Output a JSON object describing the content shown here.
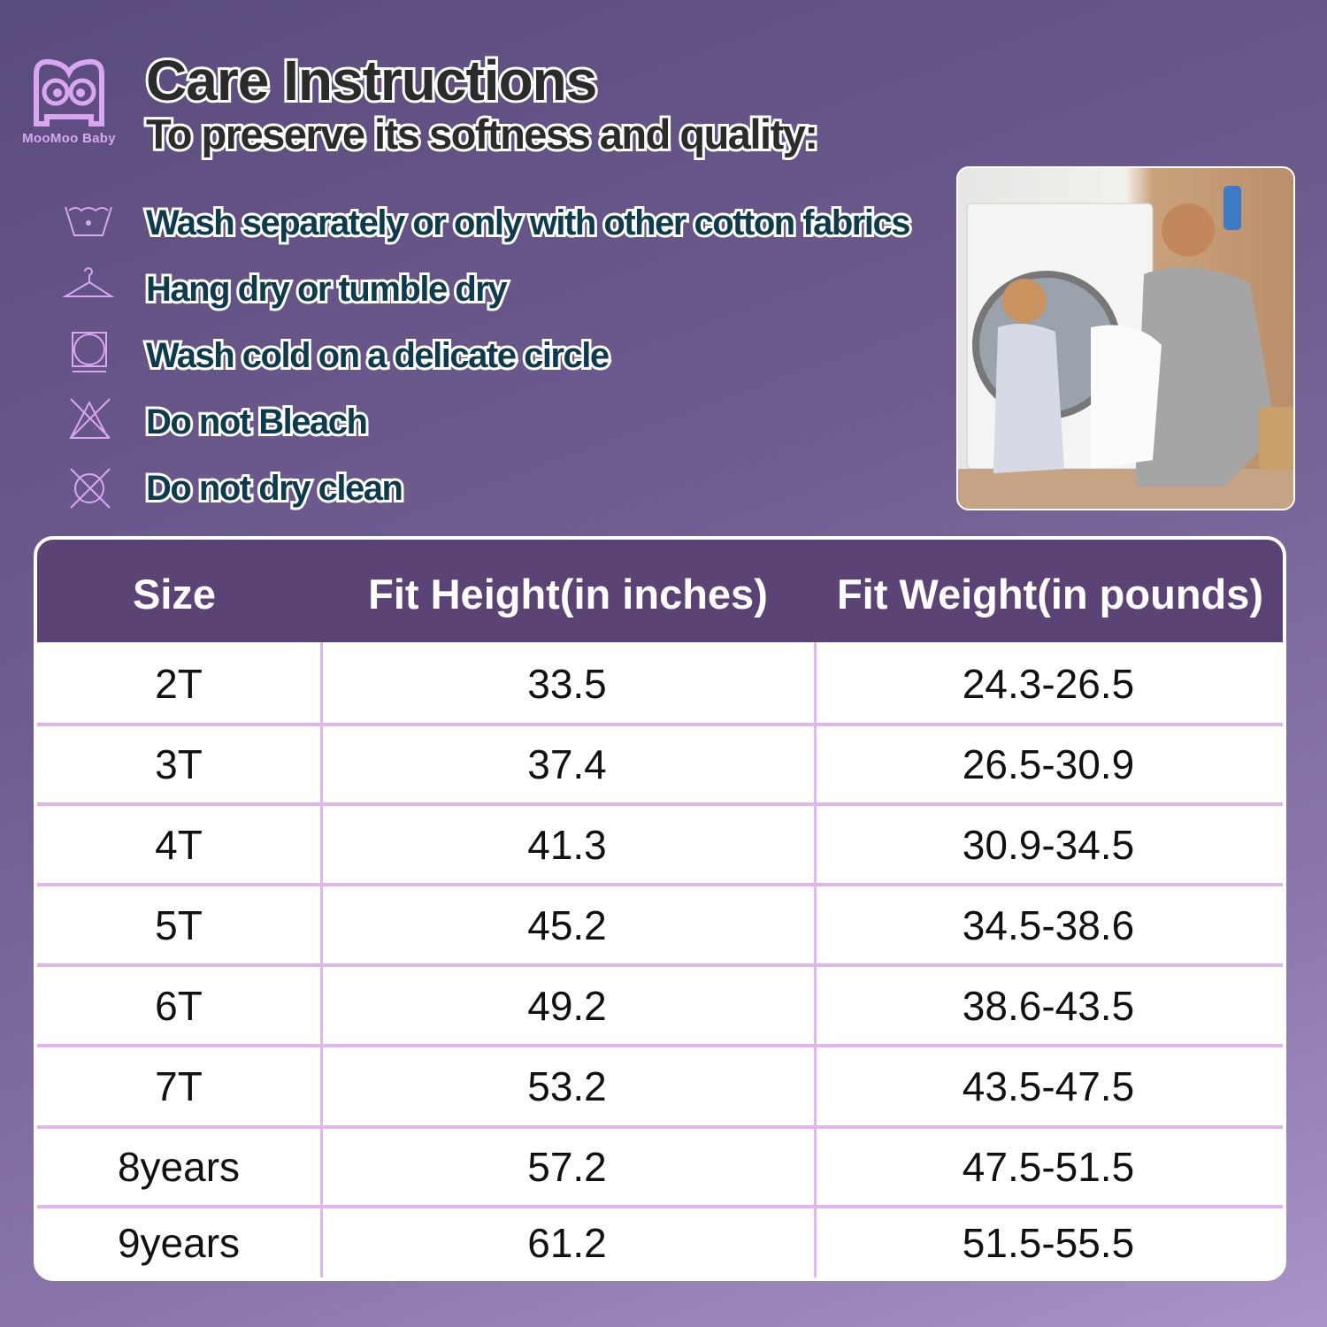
{
  "brand": {
    "name": "MooMoo Baby",
    "color": "#d9a6f2"
  },
  "header": {
    "title": "Care Instructions",
    "subtitle": "To preserve its softness and quality:"
  },
  "care_items": [
    {
      "icon": "wash-basin-icon",
      "label": "Wash separately or only with other cotton fabrics"
    },
    {
      "icon": "hanger-icon",
      "label": "Hang dry or tumble dry"
    },
    {
      "icon": "tumble-dry-icon",
      "label": "Wash cold on a delicate circle"
    },
    {
      "icon": "no-bleach-icon",
      "label": "Do not Bleach"
    },
    {
      "icon": "no-dry-clean-icon",
      "label": "Do not dry clean"
    }
  ],
  "table": {
    "headers": [
      "Size",
      "Fit Height(in inches)",
      "Fit Weight(in pounds)"
    ],
    "rows": [
      [
        "2T",
        "33.5",
        "24.3-26.5"
      ],
      [
        "3T",
        "37.4",
        "26.5-30.9"
      ],
      [
        "4T",
        "41.3",
        "30.9-34.5"
      ],
      [
        "5T",
        "45.2",
        "34.5-38.6"
      ],
      [
        "6T",
        "49.2",
        "38.6-43.5"
      ],
      [
        "7T",
        "53.2",
        "43.5-47.5"
      ],
      [
        "8years",
        "57.2",
        "47.5-51.5"
      ],
      [
        "9years",
        "61.2",
        "51.5-55.5"
      ]
    ],
    "header_color": "#5b4475",
    "line_color": "#e3b5ef"
  }
}
